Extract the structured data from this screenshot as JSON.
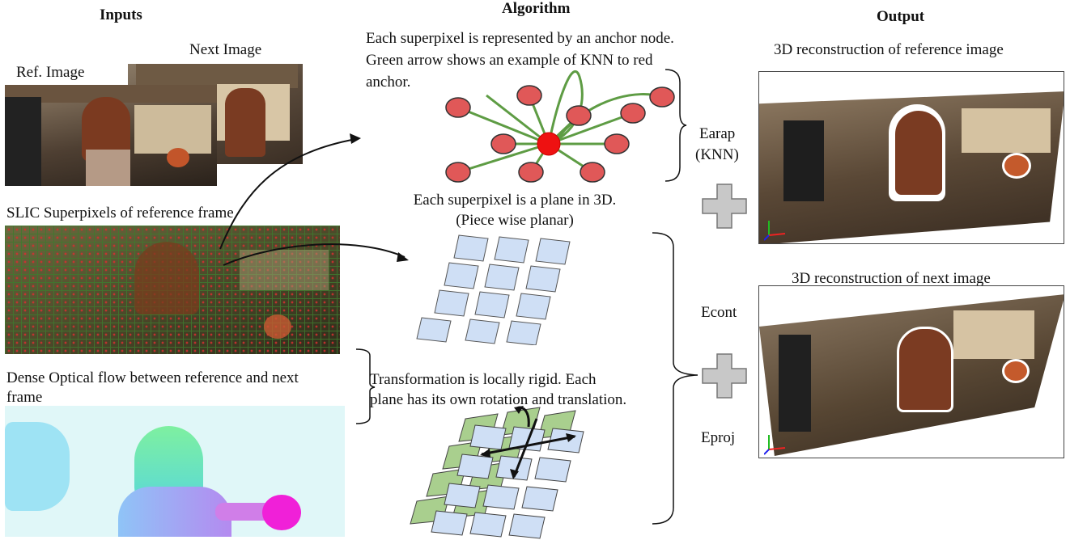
{
  "headings": {
    "inputs": "Inputs",
    "algorithm": "Algorithm",
    "output": "Output"
  },
  "inputs": {
    "ref_image": "Ref. Image",
    "next_image": "Next Image",
    "slic": "SLIC Superpixels of reference frame",
    "flow": [
      "Dense Optical flow between reference and next",
      "frame"
    ]
  },
  "algorithm": {
    "anchor_text": [
      "Each superpixel is represented by an anchor node.",
      "Green arrow shows an example of KNN to red",
      "anchor."
    ],
    "plane_text": [
      "Each superpixel is a plane in 3D.",
      "(Piece wise planar)"
    ],
    "rigid_text": [
      "Transformation is locally rigid. Each",
      "plane has its own rotation and translation."
    ]
  },
  "energies": {
    "earap": "Earap",
    "knn": "(KNN)",
    "econt": "Econt",
    "eproj": "Eproj"
  },
  "output": {
    "ref_recon": "3D reconstruction of reference image",
    "next_recon": "3D reconstruction of next image"
  },
  "colors": {
    "node_red": "#e05858",
    "edge_green": "#5e9c44",
    "plane_blue": "#cfdff5",
    "plane_green": "#a9cf8e",
    "plus_gray": "#c8c8c8"
  }
}
